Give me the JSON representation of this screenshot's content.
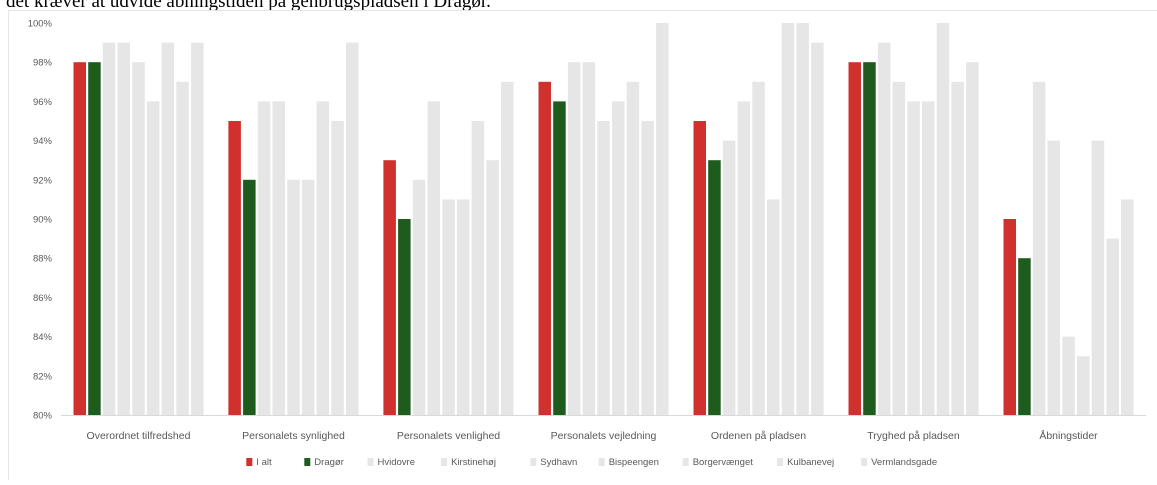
{
  "header_text": "det kræver at udvide åbningstiden på genbrugspladsen i Dragør.",
  "chart_data": {
    "type": "bar",
    "categories": [
      "Overordnet tilfredshed",
      "Personalets synlighed",
      "Personalets venlighed",
      "Personalets vejledning",
      "Ordenen på pladsen",
      "Tryghed på pladsen",
      "Åbningstider"
    ],
    "ylim": [
      80,
      100
    ],
    "yticks": [
      "80%",
      "82%",
      "84%",
      "86%",
      "88%",
      "90%",
      "92%",
      "94%",
      "96%",
      "98%",
      "100%"
    ],
    "grid": false,
    "legend_position": "bottom",
    "series": [
      {
        "name": "I alt",
        "color": "#d0312d",
        "values": [
          98,
          95,
          93,
          97,
          95,
          98,
          90
        ]
      },
      {
        "name": "Dragør",
        "color": "#1e5c1e",
        "values": [
          98,
          92,
          90,
          96,
          93,
          98,
          88
        ]
      },
      {
        "name": "Hvidovre",
        "color": "#e6e6e6",
        "values": [
          99,
          96,
          92,
          98,
          94,
          99,
          97
        ]
      },
      {
        "name": "Kirstinehøj",
        "color": "#e6e6e6",
        "values": [
          99,
          96,
          96,
          98,
          96,
          97,
          94
        ]
      },
      {
        "name": "Sydhavn",
        "color": "#e6e6e6",
        "values": [
          98,
          92,
          91,
          95,
          97,
          96,
          84
        ]
      },
      {
        "name": "Bispeengen",
        "color": "#e6e6e6",
        "values": [
          96,
          92,
          91,
          96,
          91,
          96,
          83
        ]
      },
      {
        "name": "Borgervænget",
        "color": "#e6e6e6",
        "values": [
          99,
          96,
          95,
          97,
          100,
          100,
          94
        ]
      },
      {
        "name": "Kulbanevej",
        "color": "#e6e6e6",
        "values": [
          97,
          95,
          93,
          95,
          100,
          97,
          89
        ]
      },
      {
        "name": "Vermlandsgade",
        "color": "#e6e6e6",
        "values": [
          99,
          99,
          97,
          100,
          99,
          98,
          91
        ]
      }
    ]
  }
}
